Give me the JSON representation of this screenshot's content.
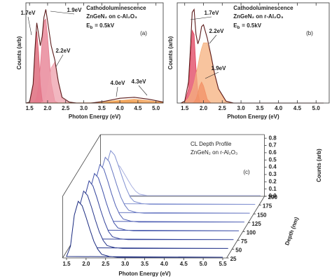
{
  "chart_data": [
    {
      "type": "line",
      "title": "Cathodoluminescence",
      "subtitle": "ZnGeN₂ on c-Al₂O₃",
      "subtitle_color": "#e0182a",
      "beam": {
        "symbol": "E",
        "subscript": "b",
        "value": "= 0.5kV"
      },
      "panel_label": "(a)",
      "xlabel": "Photon Energy (eV)",
      "ylabel": "Counts (arb)",
      "xlim": [
        1.4,
        5.2
      ],
      "ylim": [
        0,
        1.05
      ],
      "xticks": [
        1.5,
        {
          "value": 2,
          "label": "2.0"
        },
        2.5,
        {
          "value": 3,
          "label": "3.0"
        },
        3.5,
        {
          "value": 4,
          "label": "4.0"
        },
        4.5,
        {
          "value": 5,
          "label": "5.0"
        }
      ],
      "x": [
        1.4,
        1.5,
        1.6,
        1.65,
        1.7,
        1.75,
        1.8,
        1.85,
        1.9,
        1.95,
        2.0,
        2.1,
        2.2,
        2.3,
        2.4,
        2.6,
        2.8,
        3.2,
        3.6,
        4.0,
        4.4,
        4.8,
        5.2
      ],
      "series": [
        {
          "color": "#5b1a1a",
          "fill": false,
          "values": [
            0,
            0.01,
            0.2,
            0.56,
            0.84,
            0.72,
            0.6,
            0.7,
            0.9,
            0.98,
            0.86,
            0.6,
            0.45,
            0.22,
            0.06,
            0.01,
            0,
            0,
            0.02,
            0.05,
            0.06,
            0.04,
            0.01
          ]
        },
        {
          "name": "1.7eV",
          "color": "#d95a6c",
          "fill": true,
          "values": [
            0,
            0,
            0.19,
            0.53,
            0.75,
            0.53,
            0.19,
            0.03,
            0,
            0,
            0,
            0,
            0,
            0,
            0,
            0,
            0,
            0,
            0,
            0,
            0,
            0,
            0
          ]
        },
        {
          "name": "1.9eV",
          "color": "#e57a8e",
          "fill": true,
          "values": [
            0,
            0,
            0,
            0.02,
            0.06,
            0.18,
            0.39,
            0.65,
            0.86,
            0.88,
            0.7,
            0.21,
            0.02,
            0,
            0,
            0,
            0,
            0,
            0,
            0,
            0,
            0,
            0
          ]
        },
        {
          "name": "2.2eV",
          "color": "#ee9fab",
          "fill": true,
          "values": [
            0,
            0,
            0,
            0,
            0,
            0,
            0,
            0.01,
            0.02,
            0.06,
            0.14,
            0.37,
            0.43,
            0.22,
            0.05,
            0,
            0,
            0,
            0,
            0,
            0,
            0,
            0
          ]
        },
        {
          "name": "4.0eV",
          "color": "#f2c27e",
          "fill": true,
          "values": [
            0,
            0,
            0,
            0,
            0,
            0,
            0,
            0,
            0,
            0,
            0,
            0,
            0,
            0,
            0,
            0,
            0,
            0,
            0.016,
            0.03,
            0.016,
            0,
            0
          ]
        },
        {
          "name": "4.3eV",
          "color": "#f29a4a",
          "fill": true,
          "values": [
            0,
            0,
            0,
            0,
            0,
            0,
            0,
            0,
            0,
            0,
            0,
            0,
            0,
            0,
            0,
            0,
            0,
            0,
            0.005,
            0.024,
            0.04,
            0.024,
            0.005
          ]
        }
      ]
    },
    {
      "type": "line",
      "title": "Cathodoluminescence",
      "subtitle": "ZnGeN₂ on r-Al₂O₃",
      "subtitle_color": "#e0182a",
      "beam": {
        "symbol": "E",
        "subscript": "b",
        "value": "= 0.5kV"
      },
      "panel_label": "(b)",
      "xlabel": "Photon Energy (eV)",
      "ylabel": "Counts (arb)",
      "xlim": [
        1.3,
        5.35
      ],
      "ylim": [
        0,
        1.05
      ],
      "xticks": [
        1.5,
        {
          "value": 2,
          "label": "2.0"
        },
        2.5,
        {
          "value": 3,
          "label": "3.0"
        },
        3.5,
        {
          "value": 4,
          "label": "4.0"
        },
        4.5,
        {
          "value": 5,
          "label": "5.0"
        }
      ],
      "x": [
        1.4,
        1.5,
        1.6,
        1.65,
        1.7,
        1.75,
        1.8,
        1.85,
        1.9,
        1.95,
        2.0,
        2.1,
        2.2,
        2.3,
        2.4,
        2.6,
        2.8,
        3.2,
        3.6,
        4.0,
        4.4,
        4.8,
        5.2
      ],
      "series": [
        {
          "color": "#5b1a1a",
          "fill": false,
          "values": [
            0,
            0.02,
            0.22,
            0.56,
            0.95,
            0.98,
            0.72,
            0.62,
            0.68,
            0.8,
            0.82,
            0.68,
            0.5,
            0.3,
            0.15,
            0.02,
            0,
            0,
            0,
            0,
            0,
            0,
            0
          ]
        },
        {
          "name": "1.7eV",
          "color": "#e0425e",
          "fill": true,
          "values": [
            0,
            0,
            0.15,
            0.45,
            0.76,
            0.72,
            0.37,
            0.11,
            0.02,
            0,
            0,
            0,
            0,
            0,
            0,
            0,
            0,
            0,
            0,
            0,
            0,
            0,
            0
          ]
        },
        {
          "name": "1.9eV",
          "color": "#e8321e",
          "fill": true,
          "values": [
            0,
            0,
            0,
            0,
            0,
            0.01,
            0.04,
            0.1,
            0.18,
            0.22,
            0.18,
            0.04,
            0,
            0,
            0,
            0,
            0,
            0,
            0,
            0,
            0,
            0,
            0
          ]
        },
        {
          "name": "2.2eV",
          "color": "#f5b07e",
          "fill": true,
          "values": [
            0,
            0.01,
            0.05,
            0.09,
            0.14,
            0.21,
            0.3,
            0.39,
            0.49,
            0.57,
            0.63,
            0.63,
            0.49,
            0.3,
            0.14,
            0.01,
            0,
            0,
            0,
            0,
            0,
            0,
            0
          ]
        }
      ]
    },
    {
      "type": "waterfall",
      "title": "CL Depth Profile",
      "subtitle": "ZnGeN₂ on r-Al₂O₃",
      "panel_label": "(c)",
      "xlabel": "Photon Energy (eV)",
      "ylabel": "Counts (arb)",
      "zlabel": "Depth (nm)",
      "xlim": [
        1.4,
        5.6
      ],
      "ylim": [
        0,
        0.85
      ],
      "zlim": [
        25,
        200
      ],
      "xticks": [
        1.5,
        {
          "value": 2,
          "label": "2.0"
        },
        2.5,
        {
          "value": 3,
          "label": "3.0"
        },
        3.5,
        {
          "value": 4,
          "label": "4.0"
        },
        4.5,
        {
          "value": 5,
          "label": "5.0"
        },
        5.5
      ],
      "yticks": [
        {
          "value": 0,
          "label": "0.0"
        },
        0.1,
        0.2,
        0.3,
        0.4,
        0.5,
        0.6,
        0.7,
        0.8
      ],
      "zticks": [
        25,
        50,
        75,
        100,
        125,
        150,
        175,
        200
      ],
      "x": [
        1.5,
        1.6,
        1.7,
        1.8,
        1.9,
        2.0,
        2.1,
        2.2,
        2.3,
        2.4,
        2.6,
        2.8,
        3.0,
        3.5,
        4.0,
        4.5,
        5.0,
        5.5
      ],
      "z": [
        25,
        50,
        75,
        100,
        125,
        150,
        175,
        200
      ],
      "series": [
        {
          "color": "#1a2a80",
          "values": [
            0.02,
            0.16,
            0.59,
            0.78,
            0.72,
            0.56,
            0.39,
            0.23,
            0.12,
            0.05,
            0.02,
            0.01,
            0.01,
            0.01,
            0.01,
            0.01,
            0.01,
            0.01
          ]
        },
        {
          "color": "#24348a",
          "values": [
            0.02,
            0.16,
            0.6,
            0.8,
            0.74,
            0.58,
            0.4,
            0.24,
            0.12,
            0.05,
            0.02,
            0.01,
            0.01,
            0.01,
            0.01,
            0.01,
            0.01,
            0.01
          ]
        },
        {
          "color": "#30409a",
          "values": [
            0.02,
            0.16,
            0.62,
            0.82,
            0.75,
            0.59,
            0.41,
            0.25,
            0.12,
            0.05,
            0.02,
            0.01,
            0.01,
            0.01,
            0.01,
            0.01,
            0.01,
            0.01
          ]
        },
        {
          "color": "#3e50a8",
          "values": [
            0.02,
            0.16,
            0.6,
            0.8,
            0.74,
            0.58,
            0.4,
            0.24,
            0.12,
            0.05,
            0.02,
            0.01,
            0.01,
            0.01,
            0.01,
            0.01,
            0.01,
            0.01
          ]
        },
        {
          "color": "#5060b5",
          "values": [
            0.02,
            0.16,
            0.6,
            0.8,
            0.74,
            0.58,
            0.4,
            0.24,
            0.12,
            0.05,
            0.02,
            0.01,
            0.01,
            0.01,
            0.01,
            0.01,
            0.01,
            0.01
          ]
        },
        {
          "color": "#6878c2",
          "values": [
            0.02,
            0.16,
            0.59,
            0.78,
            0.72,
            0.56,
            0.39,
            0.23,
            0.12,
            0.05,
            0.02,
            0.01,
            0.01,
            0.01,
            0.01,
            0.01,
            0.01,
            0.01
          ]
        },
        {
          "color": "#8090d0",
          "values": [
            0.02,
            0.15,
            0.56,
            0.75,
            0.69,
            0.54,
            0.38,
            0.23,
            0.11,
            0.05,
            0.02,
            0.01,
            0.01,
            0.01,
            0.01,
            0.01,
            0.01,
            0.01
          ]
        },
        {
          "color": "#a8b0e0",
          "values": [
            0.01,
            0.09,
            0.34,
            0.45,
            0.41,
            0.32,
            0.23,
            0.14,
            0.07,
            0.03,
            0.01,
            0.01,
            0.01,
            0.01,
            0.01,
            0.01,
            0.01,
            0.01
          ]
        }
      ]
    }
  ]
}
